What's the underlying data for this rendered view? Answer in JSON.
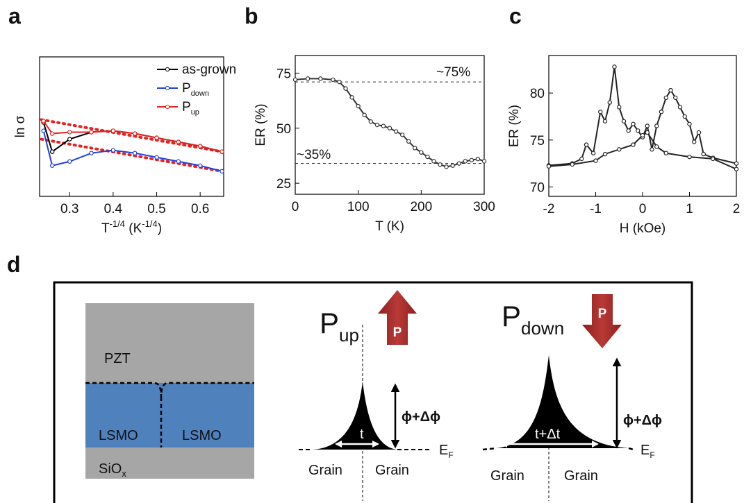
{
  "chart_data": [
    {
      "type": "line",
      "label": "a",
      "xlabel_parts": [
        {
          "t": "T"
        },
        {
          "t": "-1/4",
          "sup": true
        },
        {
          "t": " (K"
        },
        {
          "t": "-1/4",
          "sup": true
        },
        {
          "t": ")"
        }
      ],
      "ylabel": "ln σ",
      "xlim": [
        0.231,
        0.654
      ],
      "xticks": [
        0.3,
        0.4,
        0.5,
        0.6
      ],
      "ylim": [
        0,
        10
      ],
      "x": [
        0.24,
        0.26,
        0.3,
        0.35,
        0.4,
        0.45,
        0.5,
        0.55,
        0.6,
        0.65
      ],
      "series": [
        {
          "name": "as-grown",
          "color": "#000000",
          "values": [
            5.3,
            3.2,
            4.1,
            4.6,
            4.7,
            4.5,
            4.2,
            3.9,
            3.6,
            3.2
          ]
        },
        {
          "name": "P",
          "subscript": "down",
          "color": "#1f3fe0",
          "values": [
            4.7,
            2.2,
            2.5,
            3.1,
            3.3,
            3.1,
            2.8,
            2.5,
            2.2,
            1.8
          ]
        },
        {
          "name": "P",
          "subscript": "up",
          "color": "#e8221f",
          "values": [
            5.4,
            4.5,
            4.6,
            4.6,
            4.7,
            4.5,
            4.2,
            3.9,
            3.6,
            3.2
          ]
        }
      ],
      "fits": [
        {
          "color": "#e8221f",
          "x": [
            0.235,
            0.65
          ],
          "values": [
            5.5,
            3.2
          ]
        },
        {
          "color": "#e8221f",
          "x": [
            0.235,
            0.65
          ],
          "values": [
            4.1,
            1.8
          ]
        }
      ],
      "legend": "upper right"
    },
    {
      "type": "line",
      "label": "b",
      "xlabel": "T (K)",
      "ylabel": "ER (%)",
      "xlim": [
        0,
        300
      ],
      "xticks": [
        0,
        100,
        200,
        300
      ],
      "ylim": [
        20,
        83
      ],
      "yticks": [
        25,
        50,
        75
      ],
      "x": [
        0,
        20,
        40,
        60,
        70,
        80,
        90,
        100,
        110,
        120,
        130,
        140,
        150,
        160,
        170,
        180,
        190,
        200,
        210,
        220,
        230,
        240,
        250,
        260,
        270,
        280,
        290,
        300
      ],
      "series": [
        {
          "color": "#333333",
          "values": [
            72,
            72.5,
            72.5,
            72,
            71,
            68,
            64,
            60,
            56,
            53,
            51.5,
            51,
            50,
            48.5,
            47,
            44,
            41,
            39,
            37,
            35,
            33.5,
            32.5,
            33,
            34,
            35,
            35.5,
            36,
            35
          ]
        }
      ],
      "hlines": [
        71,
        34
      ],
      "annotations": [
        "~75%",
        "~35%"
      ]
    },
    {
      "type": "line",
      "label": "c",
      "xlabel": "H (kOe)",
      "ylabel": "ER (%)",
      "xlim": [
        -2,
        2
      ],
      "xticks": [
        -2,
        -1,
        0,
        1,
        2
      ],
      "ylim": [
        69,
        84
      ],
      "yticks": [
        70,
        75,
        80
      ],
      "series": [
        {
          "color": "#222222",
          "x": [
            -2,
            -1.5,
            -1.3,
            -1.2,
            -1.05,
            -0.9,
            -0.8,
            -0.7,
            -0.6,
            -0.5,
            -0.4,
            -0.3,
            -0.2,
            -0.1,
            0,
            0.1,
            0.2,
            0.3,
            0.4,
            0.5,
            0.6,
            0.7,
            0.8,
            0.9,
            1,
            1.1,
            1.2,
            1.3,
            1.5,
            2
          ],
          "values": [
            72.3,
            72.5,
            73,
            74.5,
            73.6,
            78,
            77,
            79,
            82.8,
            78.5,
            77,
            76,
            76.7,
            76,
            75.3,
            76.5,
            74,
            76.5,
            78,
            79.5,
            80.3,
            79.5,
            78.5,
            77.5,
            76.7,
            74.8,
            75.8,
            73.5,
            73.1,
            72.5
          ]
        },
        {
          "color": "#222222",
          "x": [
            -2,
            -1.5,
            -1,
            -0.8,
            -0.5,
            -0.2,
            0,
            0.1,
            0.3,
            0.5,
            1,
            1.5,
            2
          ],
          "values": [
            72.2,
            72.4,
            72.8,
            73.5,
            74,
            74.5,
            75.5,
            75.8,
            74.3,
            73.6,
            73.2,
            73,
            71.9
          ]
        }
      ]
    }
  ],
  "diagram": {
    "label": "d",
    "layers": {
      "pzt": "PZT",
      "lsmo_left": "LSMO",
      "lsmo_right": "LSMO",
      "sio": "SiO",
      "sio_sub": "x"
    },
    "up": {
      "title": "P",
      "title_sub": "up",
      "arrow": "P",
      "barrier": "ϕ+Δϕ",
      "width": "t",
      "fermi": "E",
      "fermi_sub": "F",
      "grain_left": "Grain",
      "grain_right": "Grain"
    },
    "down": {
      "title": "P",
      "title_sub": "down",
      "arrow": "P",
      "barrier": "ϕ+Δϕ",
      "width": "t+Δt",
      "fermi": "E",
      "fermi_sub": "F",
      "grain_left": "Grain",
      "grain_right": "Grain"
    }
  }
}
